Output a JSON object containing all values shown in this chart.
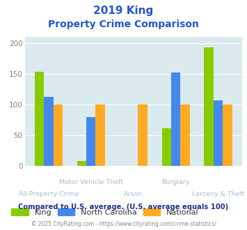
{
  "title_line1": "2019 King",
  "title_line2": "Property Crime Comparison",
  "categories": [
    "All Property Crime",
    "Motor Vehicle Theft",
    "Arson",
    "Burglary",
    "Larceny & Theft"
  ],
  "king": [
    153,
    7,
    0,
    61,
    193
  ],
  "nc": [
    112,
    79,
    0,
    152,
    106
  ],
  "national": [
    100,
    100,
    100,
    100,
    100
  ],
  "king_color": "#88cc00",
  "nc_color": "#4488ee",
  "national_color": "#ffaa22",
  "title_color": "#2255cc",
  "label_color": "#aabbcc",
  "bg_color": "#daeaee",
  "ylim": [
    0,
    210
  ],
  "yticks": [
    0,
    50,
    100,
    150,
    200
  ],
  "footer_text": "Compared to U.S. average. (U.S. average equals 100)",
  "credit_text": "© 2025 CityRating.com - https://www.cityrating.com/crime-statistics/",
  "legend_labels": [
    "King",
    "North Carolina",
    "National"
  ],
  "legend_text_color": "#333333",
  "footer_color": "#223388",
  "credit_color": "#888888",
  "bar_width": 0.22
}
